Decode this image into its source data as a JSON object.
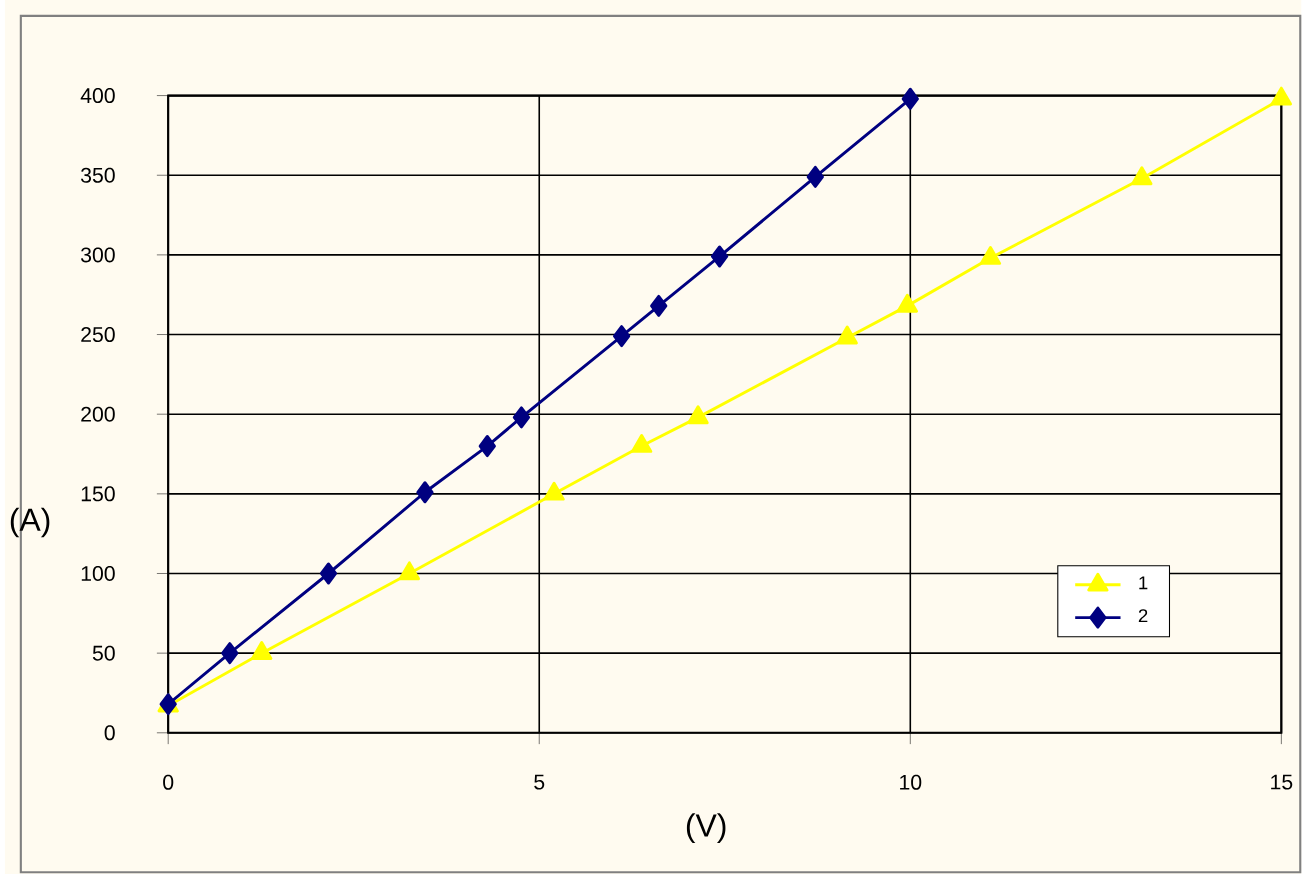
{
  "chart_data": {
    "type": "line",
    "xlabel": "(V)",
    "ylabel": "(A)",
    "xlim": [
      0,
      15
    ],
    "xticks": [
      0,
      5,
      10,
      15
    ],
    "ylim": [
      0,
      400
    ],
    "yticks": [
      0,
      50,
      100,
      150,
      200,
      250,
      300,
      350,
      400
    ],
    "grid": true,
    "legend": "bottom right",
    "line_style": "solid",
    "series": [
      {
        "name": "1",
        "color": "#ffff00",
        "marker": "triangle",
        "x": [
          0,
          1.26,
          3.25,
          5.2,
          6.38,
          7.14,
          9.15,
          9.96,
          11.08,
          13.12,
          15
        ],
        "values": [
          17,
          50,
          100,
          150,
          180,
          198,
          248,
          268,
          298,
          348,
          398
        ]
      },
      {
        "name": "2",
        "color": "#000080",
        "marker": "diamond",
        "x": [
          0,
          0.83,
          2.16,
          3.46,
          4.3,
          4.76,
          6.11,
          6.61,
          7.43,
          8.72,
          10
        ],
        "values": [
          18,
          50,
          100,
          151,
          180,
          198,
          249,
          268,
          299,
          349,
          398
        ]
      }
    ]
  }
}
